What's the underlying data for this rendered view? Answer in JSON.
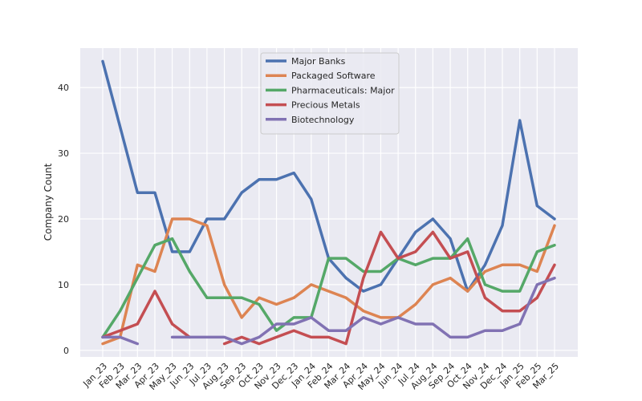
{
  "chart_data": {
    "type": "line",
    "title": "",
    "xlabel": "",
    "ylabel": "Company Count",
    "ylim": [
      -1,
      46
    ],
    "yticks": [
      0,
      10,
      20,
      30,
      40
    ],
    "grid": true,
    "legend_position": "top-center",
    "categories": [
      "Jan_23",
      "Feb_23",
      "Mar_23",
      "Apr_23",
      "May_23",
      "Jun_23",
      "Jul_23",
      "Aug_23",
      "Sep_23",
      "Oct_23",
      "Nov_23",
      "Dec_23",
      "Jan_24",
      "Feb_24",
      "Mar_24",
      "Apr_24",
      "May_24",
      "Jun_24",
      "Jul_24",
      "Aug_24",
      "Sep_24",
      "Oct_24",
      "Nov_24",
      "Dec_24",
      "Jan_25",
      "Feb_25",
      "Mar_25"
    ],
    "series": [
      {
        "name": "Major Banks",
        "color": "#4c72b0",
        "values": [
          44,
          34,
          24,
          24,
          15,
          15,
          20,
          20,
          24,
          26,
          26,
          27,
          23,
          14,
          11,
          9,
          10,
          14,
          18,
          20,
          17,
          9,
          13,
          19,
          35,
          22,
          20
        ]
      },
      {
        "name": "Packaged Software",
        "color": "#dd8452",
        "values": [
          1,
          2,
          13,
          12,
          20,
          20,
          19,
          10,
          5,
          8,
          7,
          8,
          10,
          9,
          8,
          6,
          5,
          5,
          7,
          10,
          11,
          9,
          12,
          13,
          13,
          12,
          19
        ]
      },
      {
        "name": "Pharmaceuticals: Major",
        "color": "#55a868",
        "values": [
          2,
          6,
          11,
          16,
          17,
          12,
          8,
          8,
          8,
          7,
          3,
          5,
          5,
          14,
          14,
          12,
          12,
          14,
          13,
          14,
          14,
          17,
          10,
          9,
          9,
          15,
          16
        ]
      },
      {
        "name": "Precious Metals",
        "color": "#c44e52",
        "values": [
          2,
          3,
          4,
          9,
          4,
          2,
          null,
          1,
          2,
          1,
          2,
          3,
          2,
          2,
          1,
          11,
          18,
          14,
          15,
          18,
          14,
          15,
          8,
          6,
          6,
          8,
          13
        ]
      },
      {
        "name": "Biotechnology",
        "color": "#8172b3",
        "values": [
          2,
          2,
          1,
          null,
          2,
          2,
          2,
          2,
          1,
          2,
          4,
          4,
          5,
          3,
          3,
          5,
          4,
          5,
          4,
          4,
          2,
          2,
          3,
          3,
          4,
          10,
          11
        ]
      }
    ]
  }
}
